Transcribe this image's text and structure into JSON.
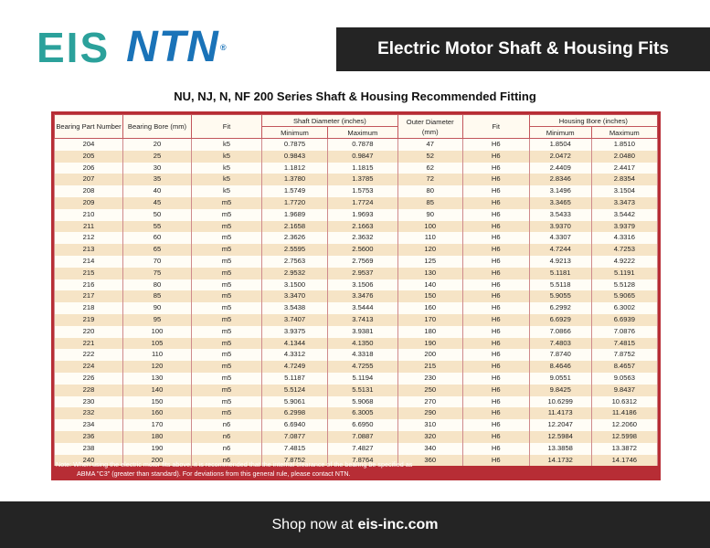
{
  "logo": {
    "eis": "EIS",
    "ntn": "NTN",
    "reg": "®"
  },
  "title": "Electric Motor Shaft & Housing Fits",
  "heading": "NU, NJ, N, NF 200 Series Shaft & Housing Recommended Fitting",
  "table": {
    "headers": {
      "bearing_part": "Bearing Part Number",
      "bearing_bore": "Bearing Bore (mm)",
      "fit": "Fit",
      "shaft_diameter": "Shaft Diameter (inches)",
      "outer_diameter": "Outer Diameter (mm)",
      "fit2": "Fit",
      "housing_bore": "Housing Bore (inches)",
      "minimum": "Minimum",
      "maximum": "Maximum"
    },
    "rows": [
      [
        "204",
        "20",
        "k5",
        "0.7875",
        "0.7878",
        "47",
        "H6",
        "1.8504",
        "1.8510"
      ],
      [
        "205",
        "25",
        "k5",
        "0.9843",
        "0.9847",
        "52",
        "H6",
        "2.0472",
        "2.0480"
      ],
      [
        "206",
        "30",
        "k5",
        "1.1812",
        "1.1815",
        "62",
        "H6",
        "2.4409",
        "2.4417"
      ],
      [
        "207",
        "35",
        "k5",
        "1.3780",
        "1.3785",
        "72",
        "H6",
        "2.8346",
        "2.8354"
      ],
      [
        "208",
        "40",
        "k5",
        "1.5749",
        "1.5753",
        "80",
        "H6",
        "3.1496",
        "3.1504"
      ],
      [
        "209",
        "45",
        "m5",
        "1.7720",
        "1.7724",
        "85",
        "H6",
        "3.3465",
        "3.3473"
      ],
      [
        "210",
        "50",
        "m5",
        "1.9689",
        "1.9693",
        "90",
        "H6",
        "3.5433",
        "3.5442"
      ],
      [
        "211",
        "55",
        "m5",
        "2.1658",
        "2.1663",
        "100",
        "H6",
        "3.9370",
        "3.9379"
      ],
      [
        "212",
        "60",
        "m5",
        "2.3626",
        "2.3632",
        "110",
        "H6",
        "4.3307",
        "4.3316"
      ],
      [
        "213",
        "65",
        "m5",
        "2.5595",
        "2.5600",
        "120",
        "H6",
        "4.7244",
        "4.7253"
      ],
      [
        "214",
        "70",
        "m5",
        "2.7563",
        "2.7569",
        "125",
        "H6",
        "4.9213",
        "4.9222"
      ],
      [
        "215",
        "75",
        "m5",
        "2.9532",
        "2.9537",
        "130",
        "H6",
        "5.1181",
        "5.1191"
      ],
      [
        "216",
        "80",
        "m5",
        "3.1500",
        "3.1506",
        "140",
        "H6",
        "5.5118",
        "5.5128"
      ],
      [
        "217",
        "85",
        "m5",
        "3.3470",
        "3.3476",
        "150",
        "H6",
        "5.9055",
        "5.9065"
      ],
      [
        "218",
        "90",
        "m5",
        "3.5438",
        "3.5444",
        "160",
        "H6",
        "6.2992",
        "6.3002"
      ],
      [
        "219",
        "95",
        "m5",
        "3.7407",
        "3.7413",
        "170",
        "H6",
        "6.6929",
        "6.6939"
      ],
      [
        "220",
        "100",
        "m5",
        "3.9375",
        "3.9381",
        "180",
        "H6",
        "7.0866",
        "7.0876"
      ],
      [
        "221",
        "105",
        "m5",
        "4.1344",
        "4.1350",
        "190",
        "H6",
        "7.4803",
        "7.4815"
      ],
      [
        "222",
        "110",
        "m5",
        "4.3312",
        "4.3318",
        "200",
        "H6",
        "7.8740",
        "7.8752"
      ],
      [
        "224",
        "120",
        "m5",
        "4.7249",
        "4.7255",
        "215",
        "H6",
        "8.4646",
        "8.4657"
      ],
      [
        "226",
        "130",
        "m5",
        "5.1187",
        "5.1194",
        "230",
        "H6",
        "9.0551",
        "9.0563"
      ],
      [
        "228",
        "140",
        "m5",
        "5.5124",
        "5.5131",
        "250",
        "H6",
        "9.8425",
        "9.8437"
      ],
      [
        "230",
        "150",
        "m5",
        "5.9061",
        "5.9068",
        "270",
        "H6",
        "10.6299",
        "10.6312"
      ],
      [
        "232",
        "160",
        "m5",
        "6.2998",
        "6.3005",
        "290",
        "H6",
        "11.4173",
        "11.4186"
      ],
      [
        "234",
        "170",
        "n6",
        "6.6940",
        "6.6950",
        "310",
        "H6",
        "12.2047",
        "12.2060"
      ],
      [
        "236",
        "180",
        "n6",
        "7.0877",
        "7.0887",
        "320",
        "H6",
        "12.5984",
        "12.5998"
      ],
      [
        "238",
        "190",
        "n6",
        "7.4815",
        "7.4827",
        "340",
        "H6",
        "13.3858",
        "13.3872"
      ],
      [
        "240",
        "200",
        "n6",
        "7.8752",
        "7.8764",
        "360",
        "H6",
        "14.1732",
        "14.1746"
      ]
    ],
    "note_line1": "Note:  When using the electric motor fits above, it is recommended that the internal clearance of the bearing be specified as",
    "note_line2": "ABMA \"C3\" (greater than standard).  For deviations from this general rule, please contact NTN."
  },
  "footer": {
    "prefix": "Shop now at",
    "link": "eis-inc.com"
  },
  "colors": {
    "eis_teal": "#2ba19b",
    "ntn_blue": "#1a73b8",
    "table_border": "#b72d35",
    "dark_bar": "#242424"
  }
}
